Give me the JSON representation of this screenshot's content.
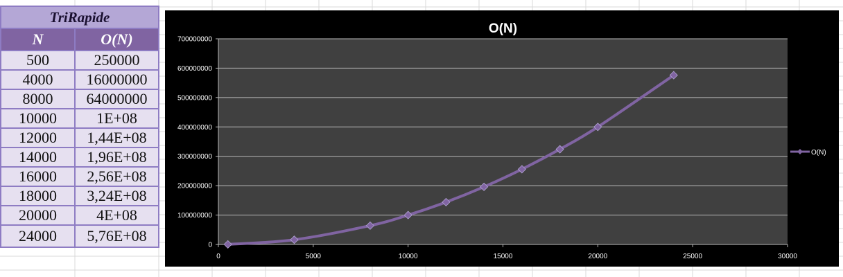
{
  "table": {
    "title": "TriRapide",
    "headers": [
      "N",
      "O(N)"
    ],
    "rows": [
      [
        "500",
        "250000"
      ],
      [
        "4000",
        "16000000"
      ],
      [
        "8000",
        "64000000"
      ],
      [
        "10000",
        "1E+08"
      ],
      [
        "12000",
        "1,44E+08"
      ],
      [
        "14000",
        "1,96E+08"
      ],
      [
        "16000",
        "2,56E+08"
      ],
      [
        "18000",
        "3,24E+08"
      ],
      [
        "20000",
        "4E+08"
      ],
      [
        "24000",
        "5,76E+08"
      ]
    ]
  },
  "chart_data": {
    "type": "line",
    "title": "O(N)",
    "xlabel": "",
    "ylabel": "",
    "x": [
      500,
      4000,
      8000,
      10000,
      12000,
      14000,
      16000,
      18000,
      20000,
      24000
    ],
    "series": [
      {
        "name": "O(N)",
        "values": [
          250000,
          16000000,
          64000000,
          100000000,
          144000000,
          196000000,
          256000000,
          324000000,
          400000000,
          576000000
        ]
      }
    ],
    "xlim": [
      0,
      30000
    ],
    "ylim": [
      0,
      700000000
    ],
    "x_ticks": [
      "0",
      "5000",
      "10000",
      "15000",
      "20000",
      "25000",
      "30000"
    ],
    "y_ticks": [
      "0",
      "100000000",
      "200000000",
      "300000000",
      "400000000",
      "500000000",
      "600000000",
      "700000000"
    ],
    "grid": true,
    "legend_position": "right",
    "colors": {
      "series": "#8064a2",
      "chart_background": "#000000",
      "plot_background": "#404040",
      "gridline": "#b8b8b8",
      "text": "#ffffff"
    }
  }
}
